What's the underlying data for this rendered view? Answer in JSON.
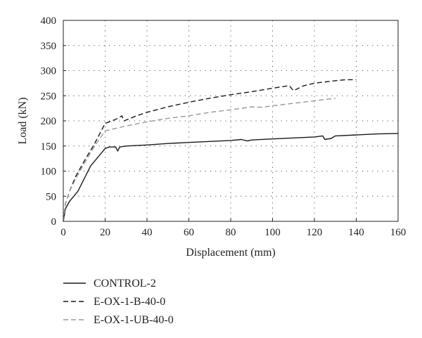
{
  "chart_data": {
    "type": "line",
    "xlabel": "Displacement (mm)",
    "ylabel": "Load (kN)",
    "xlim": [
      0,
      160
    ],
    "ylim": [
      0,
      400
    ],
    "xticks": [
      0,
      20,
      40,
      60,
      80,
      100,
      120,
      140,
      160
    ],
    "yticks": [
      0,
      50,
      100,
      150,
      200,
      250,
      300,
      350,
      400
    ],
    "grid": "dotted",
    "legend_position": "bottom-left",
    "series": [
      {
        "name": "CONTROL-2",
        "style": "solid",
        "color": "#1a1a1a",
        "points": [
          [
            0,
            0
          ],
          [
            1,
            25
          ],
          [
            3,
            40
          ],
          [
            5,
            50
          ],
          [
            7,
            60
          ],
          [
            10,
            85
          ],
          [
            13,
            110
          ],
          [
            17,
            130
          ],
          [
            20,
            145
          ],
          [
            22,
            148
          ],
          [
            25,
            148
          ],
          [
            26,
            140
          ],
          [
            27,
            148
          ],
          [
            30,
            150
          ],
          [
            40,
            152
          ],
          [
            50,
            155
          ],
          [
            60,
            157
          ],
          [
            70,
            159
          ],
          [
            80,
            161
          ],
          [
            85,
            163
          ],
          [
            88,
            160
          ],
          [
            90,
            162
          ],
          [
            100,
            164
          ],
          [
            110,
            166
          ],
          [
            120,
            168
          ],
          [
            124,
            170
          ],
          [
            125,
            163
          ],
          [
            128,
            165
          ],
          [
            130,
            170
          ],
          [
            140,
            172
          ],
          [
            150,
            174
          ],
          [
            160,
            175
          ]
        ]
      },
      {
        "name": "E-OX-1-B-40-0",
        "style": "dashed",
        "color": "#1a1a1a",
        "points": [
          [
            0,
            0
          ],
          [
            1,
            35
          ],
          [
            3,
            60
          ],
          [
            6,
            90
          ],
          [
            10,
            120
          ],
          [
            15,
            155
          ],
          [
            20,
            195
          ],
          [
            25,
            203
          ],
          [
            28,
            210
          ],
          [
            29,
            200
          ],
          [
            35,
            210
          ],
          [
            40,
            217
          ],
          [
            50,
            228
          ],
          [
            60,
            237
          ],
          [
            70,
            245
          ],
          [
            80,
            252
          ],
          [
            90,
            258
          ],
          [
            100,
            265
          ],
          [
            108,
            270
          ],
          [
            110,
            260
          ],
          [
            115,
            270
          ],
          [
            120,
            275
          ],
          [
            130,
            280
          ],
          [
            135,
            282
          ],
          [
            140,
            282
          ]
        ]
      },
      {
        "name": "E-OX-1-UB-40-0",
        "style": "dashed",
        "color": "#999999",
        "points": [
          [
            0,
            0
          ],
          [
            1,
            35
          ],
          [
            3,
            60
          ],
          [
            6,
            85
          ],
          [
            10,
            115
          ],
          [
            15,
            150
          ],
          [
            20,
            180
          ],
          [
            25,
            185
          ],
          [
            30,
            190
          ],
          [
            40,
            198
          ],
          [
            50,
            205
          ],
          [
            60,
            210
          ],
          [
            70,
            217
          ],
          [
            80,
            222
          ],
          [
            90,
            228
          ],
          [
            95,
            227
          ],
          [
            100,
            230
          ],
          [
            110,
            235
          ],
          [
            120,
            240
          ],
          [
            130,
            245
          ]
        ]
      }
    ]
  }
}
